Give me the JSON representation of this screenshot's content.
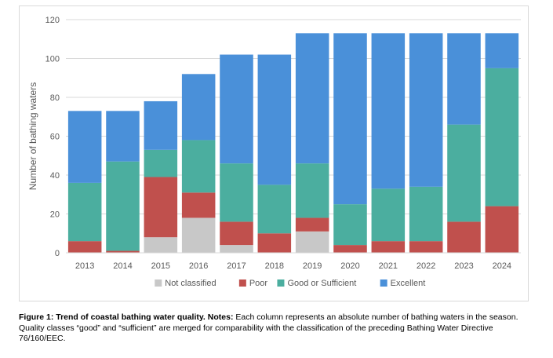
{
  "chart_data": {
    "type": "bar",
    "stacked": true,
    "categories": [
      "2013",
      "2014",
      "2015",
      "2016",
      "2017",
      "2018",
      "2019",
      "2020",
      "2021",
      "2022",
      "2023",
      "2024"
    ],
    "series": [
      {
        "name": "Not classified",
        "color": "#c8c8c8",
        "values": [
          0,
          0,
          8,
          18,
          4,
          0,
          11,
          0,
          0,
          0,
          0,
          0
        ]
      },
      {
        "name": "Poor",
        "color": "#c0504d",
        "values": [
          6,
          1,
          31,
          13,
          12,
          10,
          7,
          4,
          6,
          6,
          16,
          24
        ]
      },
      {
        "name": "Good or Sufficient",
        "color": "#4bae9f",
        "values": [
          30,
          46,
          14,
          27,
          30,
          25,
          28,
          21,
          27,
          28,
          50,
          71
        ]
      },
      {
        "name": "Excellent",
        "color": "#4a90d9",
        "values": [
          37,
          26,
          25,
          34,
          56,
          67,
          67,
          88,
          80,
          79,
          47,
          18
        ]
      }
    ],
    "xlabel": "",
    "ylabel": "Number of bathing waters",
    "ylim": [
      0,
      120
    ],
    "yticks": [
      0,
      20,
      40,
      60,
      80,
      100,
      120
    ],
    "grid": true,
    "legend_position": "bottom"
  },
  "caption": {
    "bold_lead": "Figure 1: Trend of coastal bathing water quality.",
    "bold_notes": "Notes:",
    "text": "Each column represents an absolute number of bathing waters in the season. Quality classes “good” and “sufficient” are merged for comparability with the classification of the preceding Bathing Water Directive 76/160/EEC."
  }
}
